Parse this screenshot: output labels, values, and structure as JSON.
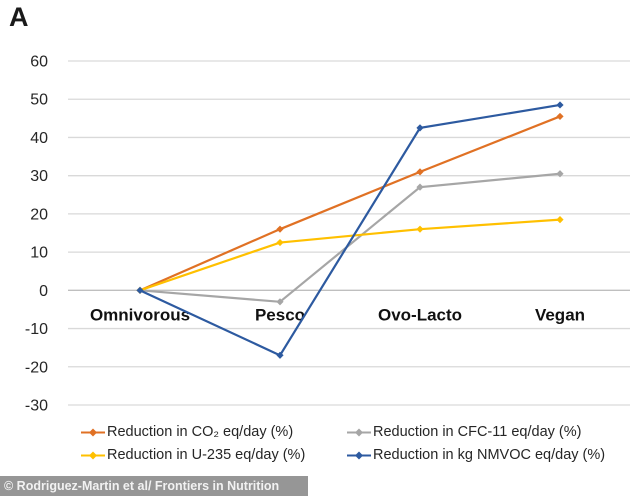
{
  "panel_label": "A",
  "footer": {
    "credit": "© Rodriguez-Martin et al/ Frontiers in Nutrition"
  },
  "chart_data": {
    "type": "line",
    "title": "",
    "xlabel": "",
    "ylabel": "",
    "categories": [
      "Omnivorous",
      "Pesco",
      "Ovo-Lacto",
      "Vegan"
    ],
    "series": [
      {
        "name": "Reduction in CO₂ eq/day (%)",
        "color": "#E07124",
        "values": [
          0,
          16,
          31,
          45.5
        ]
      },
      {
        "name": "Reduction in CFC-11 eq/day (%)",
        "color": "#A6A6A6",
        "values": [
          0,
          -3,
          27,
          30.5
        ]
      },
      {
        "name": "Reduction in U-235 eq/day (%)",
        "color": "#FFC000",
        "values": [
          0,
          12.5,
          16,
          18.5
        ]
      },
      {
        "name": "Reduction in kg NMVOC eq/day (%)",
        "color": "#2D5AA0",
        "values": [
          0,
          -17,
          42.5,
          48.5
        ]
      }
    ],
    "ylim": [
      -30,
      60
    ],
    "yticks": [
      60,
      50,
      40,
      30,
      20,
      10,
      0,
      -10,
      -20,
      -30
    ],
    "grid": true,
    "gridline_color": "#D9D9D9",
    "zero_line_color": "#BFBFBF",
    "legend_position": "bottom",
    "marker": "diamond"
  }
}
